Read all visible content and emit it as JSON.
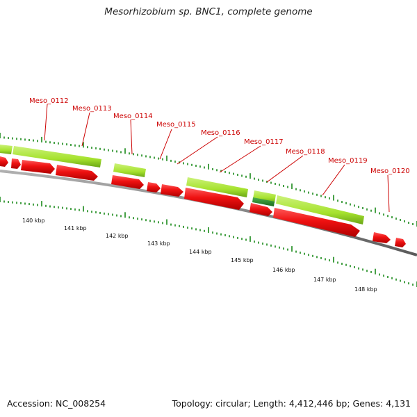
{
  "title": "Mesorhizobium sp. BNC1, complete genome",
  "footer": {
    "accession": "Accession: NC_008254",
    "topology": "Topology: circular; Length: 4,412,446 bp; Genes: 4,131"
  },
  "colors": {
    "gene_label": "#cc0000",
    "cds_red": "#ee1111",
    "feature_green": "#a6e22e",
    "feature_dark_green": "#2e8b2e",
    "backbone": "#8a8a8a",
    "tick": "#1a8a1a"
  },
  "gene_labels": [
    "Meso_0112",
    "Meso_0113",
    "Meso_0114",
    "Meso_0115",
    "Meso_0116",
    "Meso_0117",
    "Meso_0118",
    "Meso_0119",
    "Meso_0120"
  ],
  "scale_labels": [
    "140 kbp",
    "141 kbp",
    "142 kbp",
    "143 kbp",
    "144 kbp",
    "145 kbp",
    "146 kbp",
    "147 kbp",
    "148 kbp"
  ]
}
